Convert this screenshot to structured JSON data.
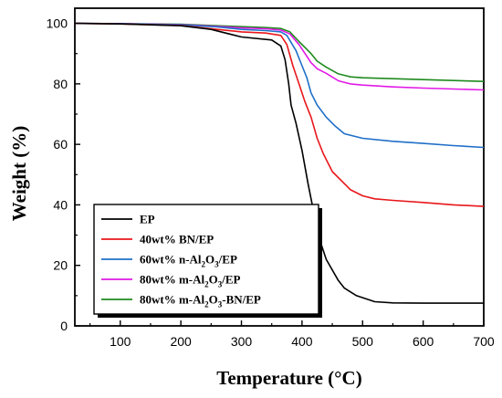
{
  "chart_data": {
    "type": "line",
    "title": "",
    "xlabel": "Temperature (°C)",
    "ylabel": "Weight (%)",
    "xlim": [
      25,
      700
    ],
    "ylim": [
      0,
      105
    ],
    "xticks": [
      100,
      200,
      300,
      400,
      500,
      600,
      700
    ],
    "yticks": [
      0,
      20,
      40,
      60,
      80,
      100
    ],
    "grid": false,
    "legend_position": "bottom-left",
    "series": [
      {
        "name": "EP",
        "color": "#000000",
        "points": [
          [
            25,
            100
          ],
          [
            100,
            99.8
          ],
          [
            200,
            99.2
          ],
          [
            250,
            98
          ],
          [
            300,
            95.5
          ],
          [
            350,
            94.5
          ],
          [
            365,
            92.5
          ],
          [
            372,
            88
          ],
          [
            378,
            80
          ],
          [
            382,
            73
          ],
          [
            390,
            67
          ],
          [
            400,
            58
          ],
          [
            410,
            47
          ],
          [
            418,
            39
          ],
          [
            425,
            31
          ],
          [
            440,
            22
          ],
          [
            460,
            15
          ],
          [
            470,
            12.5
          ],
          [
            490,
            10
          ],
          [
            520,
            8
          ],
          [
            550,
            7.6
          ],
          [
            600,
            7.5
          ],
          [
            700,
            7.5
          ]
        ]
      },
      {
        "name": "40wt% BN/EP",
        "color": "#e8171b",
        "points": [
          [
            25,
            100
          ],
          [
            100,
            99.8
          ],
          [
            200,
            99.3
          ],
          [
            260,
            98
          ],
          [
            300,
            97.2
          ],
          [
            340,
            96.8
          ],
          [
            365,
            96
          ],
          [
            375,
            93
          ],
          [
            385,
            86
          ],
          [
            395,
            80
          ],
          [
            405,
            74
          ],
          [
            415,
            69
          ],
          [
            425,
            62
          ],
          [
            435,
            57
          ],
          [
            450,
            51
          ],
          [
            470,
            47
          ],
          [
            480,
            45
          ],
          [
            500,
            43
          ],
          [
            520,
            42
          ],
          [
            550,
            41.5
          ],
          [
            600,
            40.8
          ],
          [
            650,
            40
          ],
          [
            700,
            39.5
          ]
        ]
      },
      {
        "name": "60wt% n-Al2O3/EP",
        "color": "#1f6fc8",
        "points": [
          [
            25,
            100
          ],
          [
            100,
            99.9
          ],
          [
            200,
            99.5
          ],
          [
            260,
            98.8
          ],
          [
            300,
            98
          ],
          [
            340,
            97.6
          ],
          [
            365,
            97.2
          ],
          [
            375,
            96
          ],
          [
            390,
            91
          ],
          [
            400,
            86
          ],
          [
            408,
            82
          ],
          [
            415,
            77
          ],
          [
            425,
            73
          ],
          [
            440,
            69
          ],
          [
            455,
            66
          ],
          [
            470,
            63.5
          ],
          [
            500,
            62
          ],
          [
            550,
            61
          ],
          [
            600,
            60.3
          ],
          [
            650,
            59.6
          ],
          [
            700,
            59
          ]
        ]
      },
      {
        "name": "80wt% m-Al2O3/EP",
        "color": "#e119e6",
        "points": [
          [
            25,
            100
          ],
          [
            100,
            99.9
          ],
          [
            200,
            99.6
          ],
          [
            260,
            99
          ],
          [
            300,
            98.5
          ],
          [
            340,
            98.2
          ],
          [
            365,
            97.8
          ],
          [
            380,
            96.5
          ],
          [
            395,
            93
          ],
          [
            405,
            90
          ],
          [
            415,
            87
          ],
          [
            425,
            85
          ],
          [
            440,
            83.5
          ],
          [
            460,
            81
          ],
          [
            480,
            80
          ],
          [
            500,
            79.6
          ],
          [
            550,
            79
          ],
          [
            600,
            78.6
          ],
          [
            650,
            78.3
          ],
          [
            700,
            78
          ]
        ]
      },
      {
        "name": "80wt% m-Al2O3-BN/EP",
        "color": "#1f8a1f",
        "points": [
          [
            25,
            100
          ],
          [
            100,
            99.9
          ],
          [
            200,
            99.7
          ],
          [
            260,
            99.2
          ],
          [
            300,
            98.9
          ],
          [
            340,
            98.6
          ],
          [
            365,
            98.3
          ],
          [
            380,
            97.2
          ],
          [
            395,
            94
          ],
          [
            405,
            92
          ],
          [
            415,
            90
          ],
          [
            425,
            87.5
          ],
          [
            440,
            85.5
          ],
          [
            460,
            83.3
          ],
          [
            480,
            82.3
          ],
          [
            500,
            82
          ],
          [
            550,
            81.7
          ],
          [
            600,
            81.4
          ],
          [
            650,
            81.1
          ],
          [
            700,
            80.8
          ]
        ]
      }
    ]
  }
}
